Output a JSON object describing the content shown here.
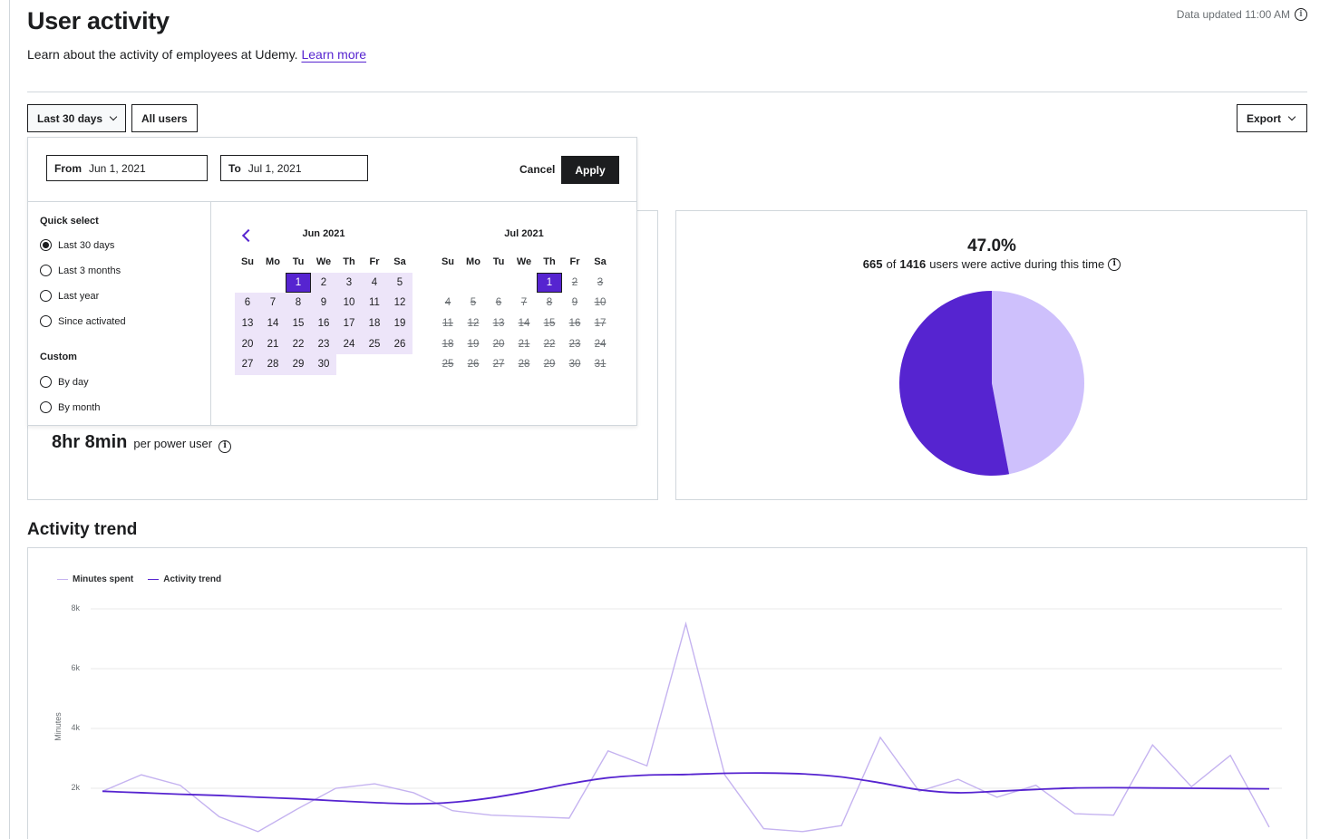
{
  "header": {
    "title": "User activity",
    "data_updated": "Data updated 11:00 AM",
    "subtitle": "Learn about the activity of employees at Udemy.",
    "learn_more": "Learn more"
  },
  "filters": {
    "range_button": "Last 30 days",
    "users_button": "All users",
    "export_button": "Export"
  },
  "date_picker": {
    "from_label": "From",
    "from_value": "Jun 1, 2021",
    "to_label": "To",
    "to_value": "Jul 1, 2021",
    "cancel": "Cancel",
    "apply": "Apply",
    "quick_select_heading": "Quick select",
    "quick_options": [
      "Last 30 days",
      "Last 3 months",
      "Last year",
      "Since activated"
    ],
    "quick_selected": "Last 30 days",
    "custom_heading": "Custom",
    "custom_options": [
      "By day",
      "By month"
    ],
    "weekdays": [
      "Su",
      "Mo",
      "Tu",
      "We",
      "Th",
      "Fr",
      "Sa"
    ],
    "months": [
      {
        "title": "Jun 2021",
        "first_weekday": 2,
        "days": 30,
        "selected": [
          1
        ],
        "in_range_through": 30,
        "disabled_after": 30
      },
      {
        "title": "Jul 2021",
        "first_weekday": 4,
        "days": 31,
        "selected": [
          1
        ],
        "in_range_through": 1,
        "disabled_after": 1
      }
    ]
  },
  "power_user": {
    "value": "8hr 8min",
    "label": "per power user"
  },
  "active_users": {
    "percent": "47.0%",
    "active": "665",
    "of": "of",
    "total": "1416",
    "label": "users were active during this time",
    "active_color": "#5624d0",
    "inactive_color": "#cec0fc",
    "active_fraction": 0.47
  },
  "activity_trend": {
    "title": "Activity trend"
  },
  "chart_data": {
    "type": "line",
    "ylabel": "Minutes",
    "yticks": [
      "2k",
      "4k",
      "6k",
      "8k"
    ],
    "ylim": [
      0,
      8000
    ],
    "grid": true,
    "legend_position": "top-left",
    "series": [
      {
        "name": "Minutes spent",
        "color": "#c5b3f0",
        "values": [
          1900,
          2450,
          2100,
          1050,
          550,
          1300,
          2000,
          2150,
          1850,
          1250,
          1100,
          1050,
          1000,
          3250,
          2750,
          7500,
          2450,
          650,
          550,
          750,
          3700,
          1900,
          2300,
          1700,
          2100,
          1150,
          1100,
          3450,
          2050,
          3100,
          700
        ]
      },
      {
        "name": "Activity trend",
        "color": "#5624d0",
        "values": [
          1900,
          1850,
          1800,
          1760,
          1700,
          1650,
          1580,
          1520,
          1480,
          1530,
          1680,
          1900,
          2150,
          2350,
          2440,
          2460,
          2500,
          2510,
          2480,
          2380,
          2180,
          1950,
          1850,
          1900,
          1960,
          2010,
          2020,
          2010,
          2000,
          1990,
          1980
        ]
      }
    ]
  }
}
